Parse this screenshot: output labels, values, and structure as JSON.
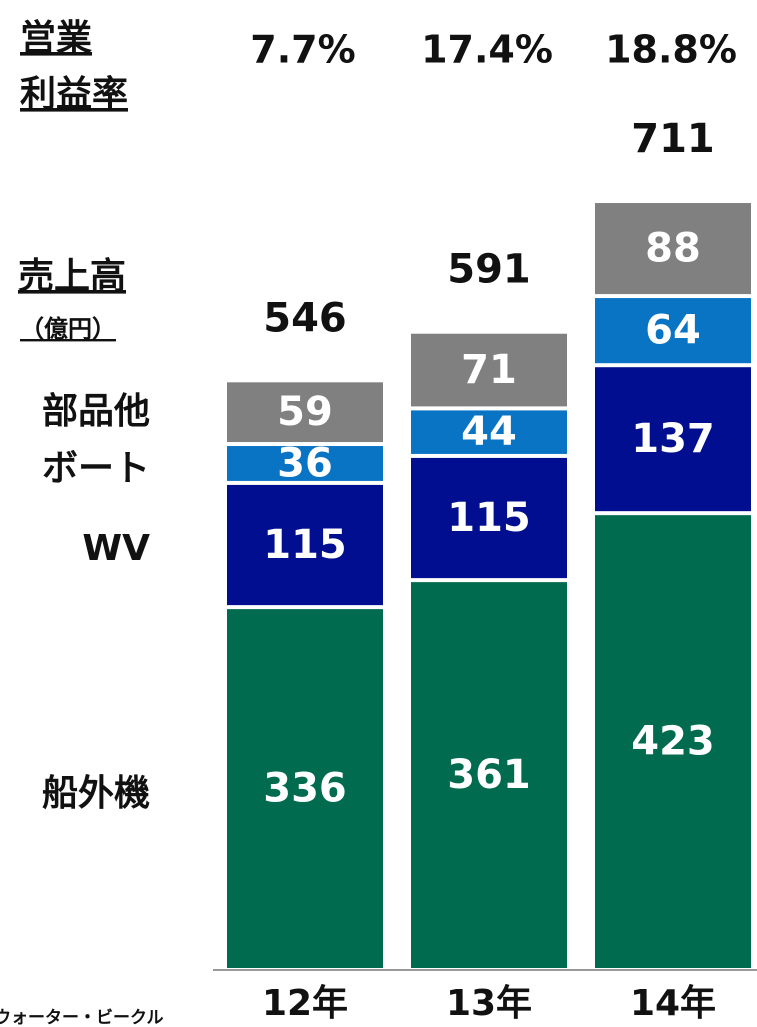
{
  "chart_data": {
    "type": "stacked_bar",
    "margin_label": [
      "営業",
      "利益率"
    ],
    "sales_label": "売上高",
    "unit_label": "（億円）",
    "categories": [
      "12年",
      "13年",
      "14年"
    ],
    "series": [
      {
        "name": "船外機",
        "color": "#006b4f",
        "values": [
          336,
          361,
          423
        ]
      },
      {
        "name": "WV",
        "color": "#000e8f",
        "values": [
          115,
          115,
          137
        ]
      },
      {
        "name": "ボート",
        "color": "#0a74c4",
        "values": [
          36,
          44,
          64
        ]
      },
      {
        "name": "部品他",
        "color": "#808080",
        "values": [
          59,
          71,
          88
        ]
      }
    ],
    "totals": [
      546,
      591,
      711
    ],
    "operating_margin": {
      "values": [
        7.7,
        17.4,
        18.8
      ],
      "value_labels": [
        "7.7%",
        "17.4%",
        "18.8%"
      ]
    },
    "footnote": "ウォーター・ビークル"
  }
}
